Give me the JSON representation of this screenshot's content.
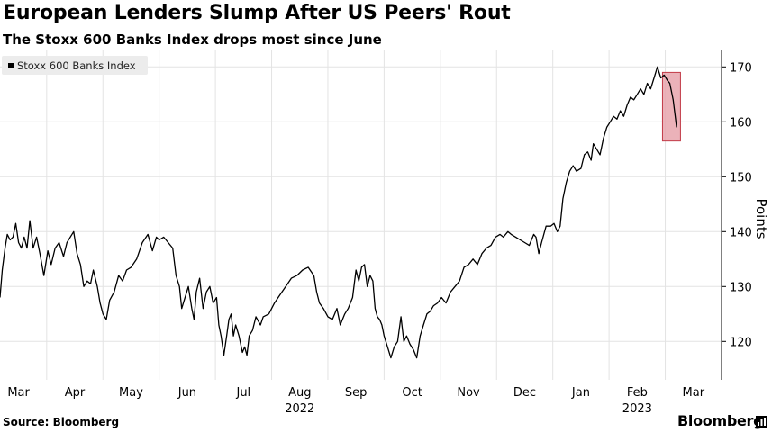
{
  "header": {
    "title": "European Lenders Slump After US Peers' Rout",
    "subtitle": "The Stoxx 600 Banks Index drops most since June"
  },
  "footer": {
    "source": "Source: Bloomberg",
    "brand": "Bloomberg"
  },
  "colors": {
    "line": "#000000",
    "grid": "#e3e3e3",
    "highlight_fill": "#e8a5ad",
    "highlight_stroke": "#c23a47",
    "legend_bg": "#ececec"
  },
  "chart_data": {
    "type": "line",
    "title": "European Lenders Slump After US Peers' Rout",
    "subtitle": "The Stoxx 600 Banks Index drops most since June",
    "legend": [
      "Stoxx 600 Banks Index"
    ],
    "legend_position": "top-left",
    "xlabel": "",
    "ylabel": "Points",
    "ylim": [
      113,
      173
    ],
    "yticks": [
      120,
      130,
      140,
      150,
      160,
      170
    ],
    "grid": true,
    "x_month_labels": [
      {
        "label": "Mar",
        "year": "",
        "pos": 0.0
      },
      {
        "label": "Apr",
        "year": "",
        "pos": 1.0
      },
      {
        "label": "May",
        "year": "",
        "pos": 2.0
      },
      {
        "label": "Jun",
        "year": "",
        "pos": 3.0
      },
      {
        "label": "Jul",
        "year": "",
        "pos": 4.0
      },
      {
        "label": "Aug",
        "year": "2022",
        "pos": 5.0
      },
      {
        "label": "Sep",
        "year": "",
        "pos": 6.0
      },
      {
        "label": "Oct",
        "year": "",
        "pos": 7.0
      },
      {
        "label": "Nov",
        "year": "",
        "pos": 8.0
      },
      {
        "label": "Dec",
        "year": "",
        "pos": 9.0
      },
      {
        "label": "Jan",
        "year": "",
        "pos": 10.0
      },
      {
        "label": "Feb",
        "year": "2023",
        "pos": 11.0
      },
      {
        "label": "Mar",
        "year": "",
        "pos": 12.0
      }
    ],
    "x_gridlines": [
      0.5,
      1.5,
      2.5,
      3.5,
      4.5,
      5.5,
      6.5,
      7.5,
      8.5,
      9.5,
      10.5,
      11.5
    ],
    "x_domain": [
      -0.33,
      12.5
    ],
    "series": [
      {
        "name": "Stoxx 600 Banks Index",
        "points": [
          [
            -0.33,
            128
          ],
          [
            -0.29,
            133
          ],
          [
            -0.24,
            137
          ],
          [
            -0.2,
            139.5
          ],
          [
            -0.15,
            138.5
          ],
          [
            -0.1,
            139
          ],
          [
            -0.05,
            141.5
          ],
          [
            0.0,
            138
          ],
          [
            0.05,
            137
          ],
          [
            0.1,
            139
          ],
          [
            0.15,
            137
          ],
          [
            0.2,
            142
          ],
          [
            0.26,
            137
          ],
          [
            0.32,
            139
          ],
          [
            0.38,
            136
          ],
          [
            0.45,
            132
          ],
          [
            0.52,
            136.5
          ],
          [
            0.58,
            134
          ],
          [
            0.65,
            137
          ],
          [
            0.72,
            138
          ],
          [
            0.8,
            135.5
          ],
          [
            0.86,
            138
          ],
          [
            0.92,
            139
          ],
          [
            0.98,
            140
          ],
          [
            1.04,
            136
          ],
          [
            1.1,
            134
          ],
          [
            1.16,
            130
          ],
          [
            1.22,
            131
          ],
          [
            1.28,
            130.5
          ],
          [
            1.33,
            133
          ],
          [
            1.4,
            130
          ],
          [
            1.45,
            127
          ],
          [
            1.5,
            125
          ],
          [
            1.56,
            124
          ],
          [
            1.62,
            127.5
          ],
          [
            1.7,
            129
          ],
          [
            1.78,
            132
          ],
          [
            1.85,
            131
          ],
          [
            1.92,
            133
          ],
          [
            2.0,
            133.5
          ],
          [
            2.1,
            135
          ],
          [
            2.2,
            138
          ],
          [
            2.3,
            139.5
          ],
          [
            2.38,
            136.5
          ],
          [
            2.45,
            139
          ],
          [
            2.5,
            138.5
          ],
          [
            2.58,
            139
          ],
          [
            2.66,
            138
          ],
          [
            2.74,
            137
          ],
          [
            2.8,
            132
          ],
          [
            2.86,
            130
          ],
          [
            2.9,
            126
          ],
          [
            2.96,
            128
          ],
          [
            3.02,
            130
          ],
          [
            3.08,
            126
          ],
          [
            3.12,
            124
          ],
          [
            3.16,
            129
          ],
          [
            3.22,
            131.5
          ],
          [
            3.28,
            126
          ],
          [
            3.34,
            129
          ],
          [
            3.4,
            130
          ],
          [
            3.46,
            127
          ],
          [
            3.52,
            128
          ],
          [
            3.56,
            123
          ],
          [
            3.6,
            121
          ],
          [
            3.65,
            117.5
          ],
          [
            3.7,
            121
          ],
          [
            3.74,
            124
          ],
          [
            3.78,
            125
          ],
          [
            3.82,
            121
          ],
          [
            3.86,
            123
          ],
          [
            3.92,
            121
          ],
          [
            3.98,
            118
          ],
          [
            4.02,
            119
          ],
          [
            4.06,
            117.5
          ],
          [
            4.1,
            121
          ],
          [
            4.16,
            122
          ],
          [
            4.22,
            124.5
          ],
          [
            4.3,
            123
          ],
          [
            4.35,
            124.5
          ],
          [
            4.45,
            125
          ],
          [
            4.55,
            127
          ],
          [
            4.65,
            128.5
          ],
          [
            4.75,
            130
          ],
          [
            4.85,
            131.5
          ],
          [
            4.95,
            132
          ],
          [
            5.05,
            133
          ],
          [
            5.15,
            133.5
          ],
          [
            5.25,
            132
          ],
          [
            5.3,
            129
          ],
          [
            5.35,
            127
          ],
          [
            5.42,
            126
          ],
          [
            5.5,
            124.5
          ],
          [
            5.58,
            124
          ],
          [
            5.66,
            126
          ],
          [
            5.72,
            123
          ],
          [
            5.8,
            125
          ],
          [
            5.86,
            126
          ],
          [
            5.94,
            128
          ],
          [
            6.0,
            133
          ],
          [
            6.05,
            131
          ],
          [
            6.1,
            133.5
          ],
          [
            6.15,
            134
          ],
          [
            6.2,
            130
          ],
          [
            6.25,
            132
          ],
          [
            6.3,
            131
          ],
          [
            6.34,
            126
          ],
          [
            6.38,
            124.5
          ],
          [
            6.42,
            124
          ],
          [
            6.46,
            123
          ],
          [
            6.5,
            121
          ],
          [
            6.56,
            119
          ],
          [
            6.62,
            117
          ],
          [
            6.68,
            119
          ],
          [
            6.74,
            120
          ],
          [
            6.8,
            124.5
          ],
          [
            6.85,
            120
          ],
          [
            6.9,
            121
          ],
          [
            6.96,
            119.5
          ],
          [
            7.02,
            118.5
          ],
          [
            7.08,
            117
          ],
          [
            7.14,
            121
          ],
          [
            7.2,
            123
          ],
          [
            7.26,
            125
          ],
          [
            7.32,
            125.5
          ],
          [
            7.38,
            126.5
          ],
          [
            7.45,
            127
          ],
          [
            7.52,
            128
          ],
          [
            7.6,
            127
          ],
          [
            7.68,
            129
          ],
          [
            7.76,
            130
          ],
          [
            7.84,
            131
          ],
          [
            7.92,
            133.5
          ],
          [
            8.0,
            134
          ],
          [
            8.08,
            135
          ],
          [
            8.16,
            134
          ],
          [
            8.24,
            136
          ],
          [
            8.32,
            137
          ],
          [
            8.4,
            137.5
          ],
          [
            8.48,
            139
          ],
          [
            8.56,
            139.5
          ],
          [
            8.62,
            139
          ],
          [
            8.7,
            140
          ],
          [
            8.76,
            139.5
          ],
          [
            8.84,
            139
          ],
          [
            8.92,
            138.5
          ],
          [
            9.0,
            138
          ],
          [
            9.08,
            137.5
          ],
          [
            9.16,
            139.5
          ],
          [
            9.2,
            139
          ],
          [
            9.25,
            136
          ],
          [
            9.3,
            138
          ],
          [
            9.38,
            141
          ],
          [
            9.46,
            141
          ],
          [
            9.52,
            141.5
          ],
          [
            9.58,
            140
          ],
          [
            9.63,
            141
          ],
          [
            9.68,
            146
          ],
          [
            9.74,
            149
          ],
          [
            9.8,
            151
          ],
          [
            9.86,
            152
          ],
          [
            9.92,
            151
          ],
          [
            10.0,
            151.5
          ],
          [
            10.06,
            154
          ],
          [
            10.12,
            154.5
          ],
          [
            10.18,
            153
          ],
          [
            10.22,
            156
          ],
          [
            10.28,
            155
          ],
          [
            10.34,
            154
          ],
          [
            10.4,
            157
          ],
          [
            10.46,
            159
          ],
          [
            10.52,
            160
          ],
          [
            10.58,
            161
          ],
          [
            10.64,
            160.5
          ],
          [
            10.7,
            162
          ],
          [
            10.76,
            161
          ],
          [
            10.82,
            163
          ],
          [
            10.88,
            164.5
          ],
          [
            10.94,
            164
          ],
          [
            11.0,
            165
          ],
          [
            11.06,
            166
          ],
          [
            11.12,
            165
          ],
          [
            11.18,
            167
          ],
          [
            11.24,
            166
          ],
          [
            11.3,
            168
          ],
          [
            11.36,
            170
          ],
          [
            11.42,
            168
          ],
          [
            11.48,
            168.5
          ],
          [
            11.54,
            167.5
          ],
          [
            11.58,
            167
          ],
          [
            11.64,
            164
          ],
          [
            11.7,
            159
          ]
        ]
      }
    ],
    "highlight": {
      "x_range": [
        11.45,
        11.77
      ],
      "y_range": [
        156.5,
        169
      ]
    }
  }
}
